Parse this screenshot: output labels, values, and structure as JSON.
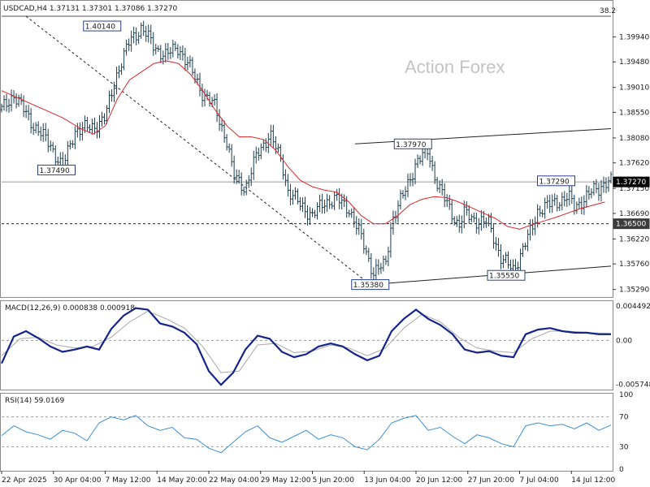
{
  "chart_data": [
    {
      "type": "candlestick",
      "header": "USDCAD,H4  1.37131 1.37301 1.37086 1.37270",
      "watermark": "Action Forex",
      "corner_value": "38.2",
      "ylim": [
        1.3515,
        1.4032
      ],
      "price_ticks": [
        "1.39940",
        "1.39480",
        "1.39010",
        "1.38550",
        "1.38080",
        "1.37620",
        "1.37150",
        "1.36690",
        "1.36220",
        "1.35760",
        "1.35290"
      ],
      "price_tick_values": [
        1.3994,
        1.3948,
        1.3901,
        1.3855,
        1.3808,
        1.3762,
        1.3715,
        1.3669,
        1.3622,
        1.3576,
        1.3529
      ],
      "current_price_label": "1.37270",
      "current_price": 1.3727,
      "level_label": "1.36500",
      "level": 1.365,
      "level_color": "#222222",
      "fib_top_value": 1.4032,
      "callouts": [
        {
          "text": "1.40140",
          "value": 1.4014,
          "t": 0.165
        },
        {
          "text": "1.37490",
          "value": 1.3749,
          "t": 0.09
        },
        {
          "text": "1.37970",
          "value": 1.3797,
          "t": 0.675
        },
        {
          "text": "1.37290",
          "value": 1.3729,
          "t": 0.91
        },
        {
          "text": "1.35380",
          "value": 1.3538,
          "t": 0.605
        },
        {
          "text": "1.35550",
          "value": 1.3555,
          "t": 0.828
        }
      ],
      "trendlines": [
        {
          "name": "falling-trendline",
          "from": [
            0.04,
            1.4032
          ],
          "to": [
            0.605,
            1.3538
          ],
          "style": "dashed"
        },
        {
          "name": "channel-upper",
          "from": [
            0.58,
            1.3797
          ],
          "to": [
            1.0,
            1.3825
          ],
          "style": "solid"
        },
        {
          "name": "channel-lower",
          "from": [
            0.605,
            1.3538
          ],
          "to": [
            1.0,
            1.3572
          ],
          "style": "solid"
        }
      ],
      "price_series": [
        [
          0.0,
          1.386
        ],
        [
          0.02,
          1.3888
        ],
        [
          0.05,
          1.3835
        ],
        [
          0.08,
          1.3795
        ],
        [
          0.1,
          1.3752
        ],
        [
          0.12,
          1.3822
        ],
        [
          0.15,
          1.3828
        ],
        [
          0.17,
          1.3845
        ],
        [
          0.19,
          1.393
        ],
        [
          0.21,
          1.3985
        ],
        [
          0.23,
          1.4012
        ],
        [
          0.25,
          1.3975
        ],
        [
          0.27,
          1.396
        ],
        [
          0.29,
          1.3975
        ],
        [
          0.31,
          1.3935
        ],
        [
          0.33,
          1.389
        ],
        [
          0.35,
          1.3865
        ],
        [
          0.37,
          1.38
        ],
        [
          0.38,
          1.374
        ],
        [
          0.4,
          1.3715
        ],
        [
          0.42,
          1.378
        ],
        [
          0.44,
          1.3815
        ],
        [
          0.46,
          1.3762
        ],
        [
          0.47,
          1.371
        ],
        [
          0.49,
          1.3685
        ],
        [
          0.51,
          1.3665
        ],
        [
          0.53,
          1.369
        ],
        [
          0.55,
          1.3695
        ],
        [
          0.57,
          1.3678
        ],
        [
          0.59,
          1.3625
        ],
        [
          0.61,
          1.356
        ],
        [
          0.63,
          1.3575
        ],
        [
          0.64,
          1.3655
        ],
        [
          0.66,
          1.3705
        ],
        [
          0.68,
          1.3762
        ],
        [
          0.7,
          1.3785
        ],
        [
          0.71,
          1.374
        ],
        [
          0.72,
          1.371
        ],
        [
          0.74,
          1.3668
        ],
        [
          0.75,
          1.3645
        ],
        [
          0.76,
          1.367
        ],
        [
          0.78,
          1.3655
        ],
        [
          0.8,
          1.365
        ],
        [
          0.82,
          1.3585
        ],
        [
          0.84,
          1.3565
        ],
        [
          0.85,
          1.359
        ],
        [
          0.87,
          1.364
        ],
        [
          0.88,
          1.3675
        ],
        [
          0.9,
          1.3685
        ],
        [
          0.92,
          1.3695
        ],
        [
          0.93,
          1.37
        ],
        [
          0.94,
          1.368
        ],
        [
          0.96,
          1.37
        ],
        [
          0.97,
          1.371
        ],
        [
          0.98,
          1.3715
        ],
        [
          0.99,
          1.3727
        ]
      ],
      "ma_series": [
        [
          0.0,
          1.3895
        ],
        [
          0.03,
          1.388
        ],
        [
          0.07,
          1.386
        ],
        [
          0.1,
          1.3845
        ],
        [
          0.13,
          1.3825
        ],
        [
          0.15,
          1.3815
        ],
        [
          0.17,
          1.383
        ],
        [
          0.19,
          1.388
        ],
        [
          0.21,
          1.3915
        ],
        [
          0.23,
          1.393
        ],
        [
          0.25,
          1.3945
        ],
        [
          0.27,
          1.395
        ],
        [
          0.29,
          1.3945
        ],
        [
          0.31,
          1.3925
        ],
        [
          0.33,
          1.3895
        ],
        [
          0.35,
          1.386
        ],
        [
          0.37,
          1.383
        ],
        [
          0.39,
          1.381
        ],
        [
          0.41,
          1.381
        ],
        [
          0.43,
          1.3805
        ],
        [
          0.45,
          1.3785
        ],
        [
          0.47,
          1.3755
        ],
        [
          0.49,
          1.373
        ],
        [
          0.51,
          1.3718
        ],
        [
          0.53,
          1.3712
        ],
        [
          0.55,
          1.3708
        ],
        [
          0.57,
          1.369
        ],
        [
          0.59,
          1.3665
        ],
        [
          0.61,
          1.365
        ],
        [
          0.63,
          1.365
        ],
        [
          0.65,
          1.3665
        ],
        [
          0.67,
          1.3685
        ],
        [
          0.69,
          1.3695
        ],
        [
          0.71,
          1.37
        ],
        [
          0.73,
          1.3698
        ],
        [
          0.75,
          1.369
        ],
        [
          0.77,
          1.368
        ],
        [
          0.79,
          1.367
        ],
        [
          0.81,
          1.366
        ],
        [
          0.83,
          1.3645
        ],
        [
          0.85,
          1.364
        ],
        [
          0.87,
          1.3648
        ],
        [
          0.89,
          1.3655
        ],
        [
          0.91,
          1.3662
        ],
        [
          0.93,
          1.367
        ],
        [
          0.95,
          1.3678
        ],
        [
          0.97,
          1.3684
        ],
        [
          0.99,
          1.369
        ]
      ],
      "x_tick_labels": [
        "22 Apr 2025",
        "30 Apr 04:00",
        "7 May 12:00",
        "14 May 20:00",
        "22 May 04:00",
        "29 May 12:00",
        "5 Jun 20:00",
        "13 Jun 04:00",
        "20 Jun 12:00",
        "27 Jun 20:00",
        "7 Jul 04:00",
        "14 Jul 12:00"
      ],
      "x_tick_positions": [
        0.0,
        0.085,
        0.17,
        0.255,
        0.34,
        0.425,
        0.51,
        0.595,
        0.68,
        0.765,
        0.85,
        0.935
      ]
    },
    {
      "type": "line",
      "title": "MACD(12,26,9) 0.000838 0.000918",
      "ylim": [
        -0.0062,
        0.005
      ],
      "ticks": [
        "0.004492",
        "0.00",
        "-0.005748"
      ],
      "tick_values": [
        0.004492,
        0.0,
        -0.005748
      ],
      "series": [
        {
          "name": "MACD",
          "values": [
            [
              0.0,
              -0.003
            ],
            [
              0.02,
              0.0005
            ],
            [
              0.04,
              0.0012
            ],
            [
              0.06,
              0.0003
            ],
            [
              0.08,
              -0.0008
            ],
            [
              0.1,
              -0.0015
            ],
            [
              0.12,
              -0.0012
            ],
            [
              0.14,
              -0.0008
            ],
            [
              0.16,
              -0.0012
            ],
            [
              0.18,
              0.0015
            ],
            [
              0.2,
              0.0032
            ],
            [
              0.22,
              0.0042
            ],
            [
              0.24,
              0.004
            ],
            [
              0.26,
              0.0022
            ],
            [
              0.28,
              0.0018
            ],
            [
              0.3,
              0.001
            ],
            [
              0.32,
              -0.0005
            ],
            [
              0.34,
              -0.004
            ],
            [
              0.36,
              -0.0058
            ],
            [
              0.38,
              -0.0042
            ],
            [
              0.4,
              -0.0012
            ],
            [
              0.42,
              0.0006
            ],
            [
              0.44,
              0.0002
            ],
            [
              0.46,
              -0.0015
            ],
            [
              0.48,
              -0.0022
            ],
            [
              0.5,
              -0.0018
            ],
            [
              0.52,
              -0.0008
            ],
            [
              0.54,
              -0.0004
            ],
            [
              0.56,
              -0.0008
            ],
            [
              0.58,
              -0.0018
            ],
            [
              0.6,
              -0.0026
            ],
            [
              0.62,
              -0.002
            ],
            [
              0.64,
              0.0012
            ],
            [
              0.66,
              0.0028
            ],
            [
              0.68,
              0.004
            ],
            [
              0.7,
              0.0028
            ],
            [
              0.72,
              0.002
            ],
            [
              0.74,
              0.0008
            ],
            [
              0.76,
              -0.0012
            ],
            [
              0.78,
              -0.0016
            ],
            [
              0.8,
              -0.0014
            ],
            [
              0.82,
              -0.002
            ],
            [
              0.84,
              -0.0022
            ],
            [
              0.86,
              0.0008
            ],
            [
              0.88,
              0.0014
            ],
            [
              0.9,
              0.0016
            ],
            [
              0.92,
              0.0012
            ],
            [
              0.94,
              0.001
            ],
            [
              0.96,
              0.001
            ],
            [
              0.98,
              0.0008
            ],
            [
              1.0,
              0.0008
            ]
          ]
        },
        {
          "name": "Signal",
          "values": [
            [
              0.0,
              -0.002
            ],
            [
              0.03,
              0.0002
            ],
            [
              0.06,
              0.0004
            ],
            [
              0.09,
              -0.0006
            ],
            [
              0.12,
              -0.001
            ],
            [
              0.15,
              -0.0008
            ],
            [
              0.18,
              0.0004
            ],
            [
              0.21,
              0.0024
            ],
            [
              0.24,
              0.0038
            ],
            [
              0.27,
              0.0028
            ],
            [
              0.3,
              0.0016
            ],
            [
              0.33,
              -0.0008
            ],
            [
              0.36,
              -0.0042
            ],
            [
              0.39,
              -0.004
            ],
            [
              0.42,
              -0.0006
            ],
            [
              0.45,
              -0.0004
            ],
            [
              0.48,
              -0.0016
            ],
            [
              0.51,
              -0.0014
            ],
            [
              0.54,
              -0.0006
            ],
            [
              0.57,
              -0.001
            ],
            [
              0.6,
              -0.002
            ],
            [
              0.63,
              -0.001
            ],
            [
              0.66,
              0.0016
            ],
            [
              0.69,
              0.0034
            ],
            [
              0.72,
              0.0024
            ],
            [
              0.75,
              0.0004
            ],
            [
              0.78,
              -0.001
            ],
            [
              0.81,
              -0.0014
            ],
            [
              0.84,
              -0.0016
            ],
            [
              0.87,
              0.0002
            ],
            [
              0.9,
              0.0012
            ],
            [
              0.93,
              0.0012
            ],
            [
              0.96,
              0.001
            ],
            [
              1.0,
              0.0009
            ]
          ]
        }
      ]
    },
    {
      "type": "line",
      "title": "RSI(14) 59.0169",
      "ylim": [
        0,
        100
      ],
      "ticks": [
        "100",
        "70",
        "30",
        "0"
      ],
      "tick_values": [
        100,
        70,
        30,
        0
      ],
      "levels": [
        70,
        30
      ],
      "series": [
        {
          "name": "RSI",
          "values": [
            [
              0.0,
              45
            ],
            [
              0.02,
              58
            ],
            [
              0.04,
              50
            ],
            [
              0.06,
              46
            ],
            [
              0.08,
              40
            ],
            [
              0.1,
              52
            ],
            [
              0.12,
              48
            ],
            [
              0.14,
              38
            ],
            [
              0.16,
              62
            ],
            [
              0.18,
              70
            ],
            [
              0.2,
              66
            ],
            [
              0.22,
              72
            ],
            [
              0.24,
              58
            ],
            [
              0.26,
              52
            ],
            [
              0.28,
              56
            ],
            [
              0.3,
              42
            ],
            [
              0.32,
              40
            ],
            [
              0.34,
              28
            ],
            [
              0.36,
              22
            ],
            [
              0.38,
              36
            ],
            [
              0.4,
              50
            ],
            [
              0.42,
              58
            ],
            [
              0.44,
              42
            ],
            [
              0.46,
              36
            ],
            [
              0.48,
              44
            ],
            [
              0.5,
              52
            ],
            [
              0.52,
              40
            ],
            [
              0.54,
              46
            ],
            [
              0.56,
              42
            ],
            [
              0.58,
              30
            ],
            [
              0.6,
              26
            ],
            [
              0.62,
              40
            ],
            [
              0.64,
              62
            ],
            [
              0.66,
              68
            ],
            [
              0.68,
              72
            ],
            [
              0.7,
              52
            ],
            [
              0.72,
              56
            ],
            [
              0.74,
              44
            ],
            [
              0.76,
              34
            ],
            [
              0.78,
              46
            ],
            [
              0.8,
              42
            ],
            [
              0.82,
              34
            ],
            [
              0.84,
              30
            ],
            [
              0.86,
              58
            ],
            [
              0.88,
              62
            ],
            [
              0.9,
              58
            ],
            [
              0.92,
              60
            ],
            [
              0.94,
              54
            ],
            [
              0.96,
              62
            ],
            [
              0.98,
              52
            ],
            [
              1.0,
              59
            ]
          ]
        }
      ]
    }
  ]
}
